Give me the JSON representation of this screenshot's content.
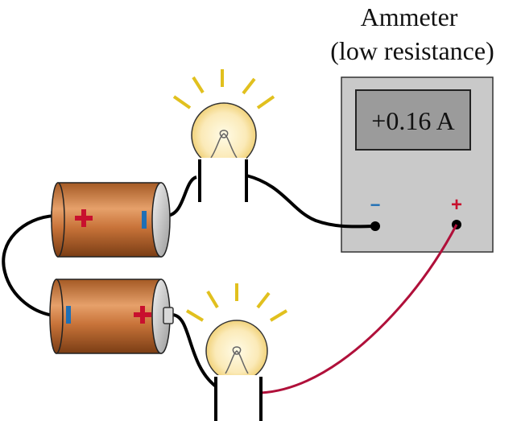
{
  "ammeter": {
    "title_line1": "Ammeter",
    "title_line2": "(low resistance)",
    "reading": "+0.16 A",
    "terminal_negative": "−",
    "terminal_positive": "+"
  },
  "colors": {
    "battery_copper": "#c9743a",
    "meter_body": "#c8c8c8",
    "display": "#9a9a9a",
    "plus_red": "#c8102e",
    "minus_blue": "#1f6fb5",
    "wire_black": "#000000",
    "wire_red": "#b0103a",
    "glow_yellow": "#e7c21f",
    "bulb_glass": "#f8e6b0"
  },
  "icons": [
    "battery-icon",
    "light-bulb-icon",
    "ammeter-icon",
    "plus-sign-icon",
    "minus-sign-icon"
  ]
}
